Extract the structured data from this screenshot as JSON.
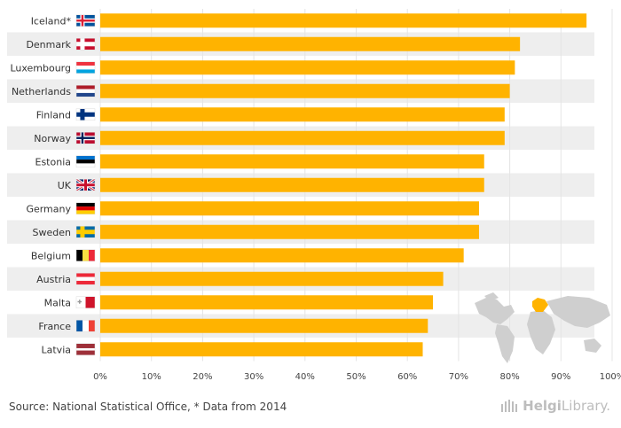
{
  "chart_data": {
    "type": "bar",
    "orientation": "horizontal",
    "categories": [
      "Iceland*",
      "Denmark",
      "Luxembourg",
      "Netherlands",
      "Finland",
      "Norway",
      "Estonia",
      "UK",
      "Germany",
      "Sweden",
      "Belgium",
      "Austria",
      "Malta",
      "France",
      "Latvia"
    ],
    "values": [
      95,
      82,
      81,
      80,
      79,
      79,
      75,
      75,
      74,
      74,
      71,
      67,
      65,
      64,
      63
    ],
    "xlim": [
      0,
      100
    ],
    "xticks": [
      "0%",
      "10%",
      "20%",
      "30%",
      "40%",
      "50%",
      "60%",
      "70%",
      "80%",
      "90%",
      "100%"
    ],
    "bar_color": "#FFB300",
    "row_band_color": "#EEEEEE",
    "unit": "%"
  },
  "footer": {
    "source": "Source: National Statistical Office, * Data from 2014",
    "brand_a": "Helgi",
    "brand_b": "Library."
  },
  "colors": {
    "map_land": "#cfcfcf",
    "map_highlight": "#FFB300"
  }
}
